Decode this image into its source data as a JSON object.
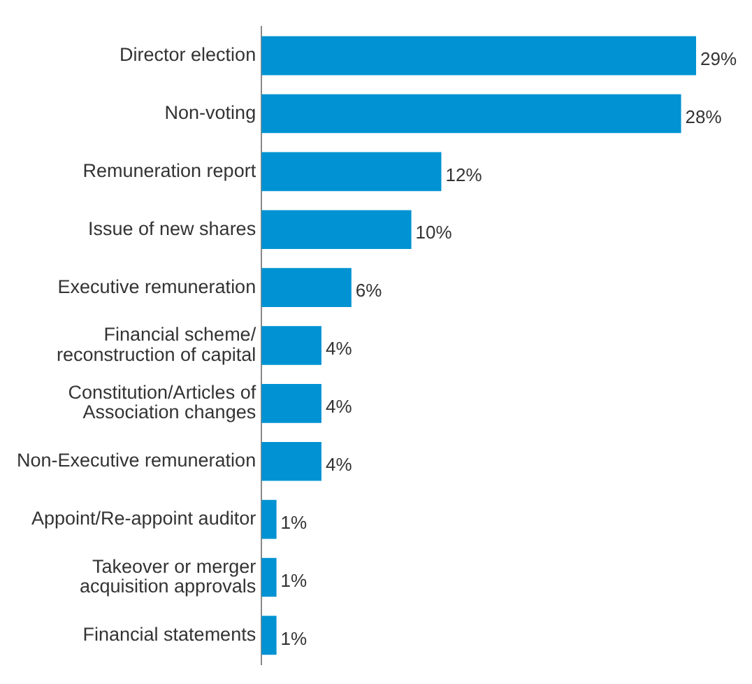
{
  "chart_data": {
    "type": "bar",
    "orientation": "horizontal",
    "categories": [
      "Director election",
      "Non-voting",
      "Remuneration report",
      "Issue of new shares",
      "Executive remuneration",
      "Financial scheme/\nreconstruction of capital",
      "Constitution/Articles of\nAssociation changes",
      "Non-Executive remuneration",
      "Appoint/Re-appoint auditor",
      "Takeover or merger\nacquisition approvals",
      "Financial statements"
    ],
    "values": [
      29,
      28,
      12,
      10,
      6,
      4,
      4,
      4,
      1,
      1,
      1
    ],
    "value_labels": [
      "29%",
      "28%",
      "12%",
      "10%",
      "6%",
      "4%",
      "4%",
      "4%",
      "1%",
      "1%",
      "1%"
    ],
    "color": "#0092d2",
    "legend": false
  }
}
